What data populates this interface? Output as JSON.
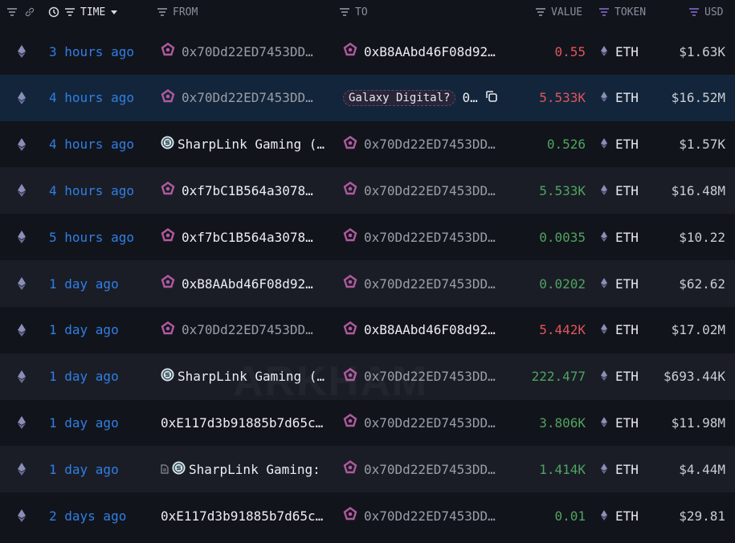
{
  "header": {
    "time": "TIME",
    "from": "FROM",
    "to": "TO",
    "value": "VALUE",
    "token": "TOKEN",
    "usd": "USD"
  },
  "colors": {
    "time": "#2f7fe6",
    "outflow": "#e0555b",
    "inflow": "#4fa45f",
    "selected_row": "#13253a",
    "entity_icon": "#b05a9e"
  },
  "watermark": "ARKHAM",
  "rows": [
    {
      "time": "3 hours ago",
      "from": {
        "text": "0x70Dd22ED7453DD…",
        "icon": "entity-pentagon-icon",
        "dim": true
      },
      "to": {
        "text": "0xB8AAbd46F08d92…",
        "icon": "entity-pentagon-icon",
        "dim": false
      },
      "value": "0.55",
      "dir": "out",
      "token": "ETH",
      "usd": "$1.63K"
    },
    {
      "time": "4 hours ago",
      "from": {
        "text": "0x70Dd22ED7453DD…",
        "icon": "entity-pentagon-icon",
        "dim": true
      },
      "to": {
        "badge": "Galaxy Digital?",
        "text": "0…",
        "copy": true,
        "dim": false
      },
      "value": "5.533K",
      "dir": "out",
      "token": "ETH",
      "usd": "$16.52M",
      "selected": true
    },
    {
      "time": "4 hours ago",
      "from": {
        "text": "SharpLink Gaming (…",
        "icon": "sharplink-icon",
        "dim": false
      },
      "to": {
        "text": "0x70Dd22ED7453DD…",
        "icon": "entity-pentagon-icon",
        "dim": true
      },
      "value": "0.526",
      "dir": "in",
      "token": "ETH",
      "usd": "$1.57K"
    },
    {
      "time": "4 hours ago",
      "from": {
        "text": "0xf7bC1B564a3078…",
        "icon": "entity-pentagon-icon",
        "dim": false
      },
      "to": {
        "text": "0x70Dd22ED7453DD…",
        "icon": "entity-pentagon-icon",
        "dim": true
      },
      "value": "5.533K",
      "dir": "in",
      "token": "ETH",
      "usd": "$16.48M"
    },
    {
      "time": "5 hours ago",
      "from": {
        "text": "0xf7bC1B564a3078…",
        "icon": "entity-pentagon-icon",
        "dim": false
      },
      "to": {
        "text": "0x70Dd22ED7453DD…",
        "icon": "entity-pentagon-icon",
        "dim": true
      },
      "value": "0.0035",
      "dir": "in",
      "token": "ETH",
      "usd": "$10.22"
    },
    {
      "time": "1 day ago",
      "from": {
        "text": "0xB8AAbd46F08d92…",
        "icon": "entity-pentagon-icon",
        "dim": false
      },
      "to": {
        "text": "0x70Dd22ED7453DD…",
        "icon": "entity-pentagon-icon",
        "dim": true
      },
      "value": "0.0202",
      "dir": "in",
      "token": "ETH",
      "usd": "$62.62"
    },
    {
      "time": "1 day ago",
      "from": {
        "text": "0x70Dd22ED7453DD…",
        "icon": "entity-pentagon-icon",
        "dim": true
      },
      "to": {
        "text": "0xB8AAbd46F08d92…",
        "icon": "entity-pentagon-icon",
        "dim": false
      },
      "value": "5.442K",
      "dir": "out",
      "token": "ETH",
      "usd": "$17.02M"
    },
    {
      "time": "1 day ago",
      "from": {
        "text": "SharpLink Gaming (…",
        "icon": "sharplink-icon",
        "dim": false
      },
      "to": {
        "text": "0x70Dd22ED7453DD…",
        "icon": "entity-pentagon-icon",
        "dim": true
      },
      "value": "222.477",
      "dir": "in",
      "token": "ETH",
      "usd": "$693.44K"
    },
    {
      "time": "1 day ago",
      "from": {
        "text": "0xE117d3b91885b7d65c…",
        "dim": false
      },
      "to": {
        "text": "0x70Dd22ED7453DD…",
        "icon": "entity-pentagon-icon",
        "dim": true
      },
      "value": "3.806K",
      "dir": "in",
      "token": "ETH",
      "usd": "$11.98M"
    },
    {
      "time": "1 day ago",
      "from": {
        "text": "SharpLink Gaming:",
        "icon": "sharplink-icon",
        "contract": true,
        "dim": false
      },
      "to": {
        "text": "0x70Dd22ED7453DD…",
        "icon": "entity-pentagon-icon",
        "dim": true
      },
      "value": "1.414K",
      "dir": "in",
      "token": "ETH",
      "usd": "$4.44M"
    },
    {
      "time": "2 days ago",
      "from": {
        "text": "0xE117d3b91885b7d65c…",
        "dim": false
      },
      "to": {
        "text": "0x70Dd22ED7453DD…",
        "icon": "entity-pentagon-icon",
        "dim": true
      },
      "value": "0.01",
      "dir": "in",
      "token": "ETH",
      "usd": "$29.81"
    }
  ]
}
